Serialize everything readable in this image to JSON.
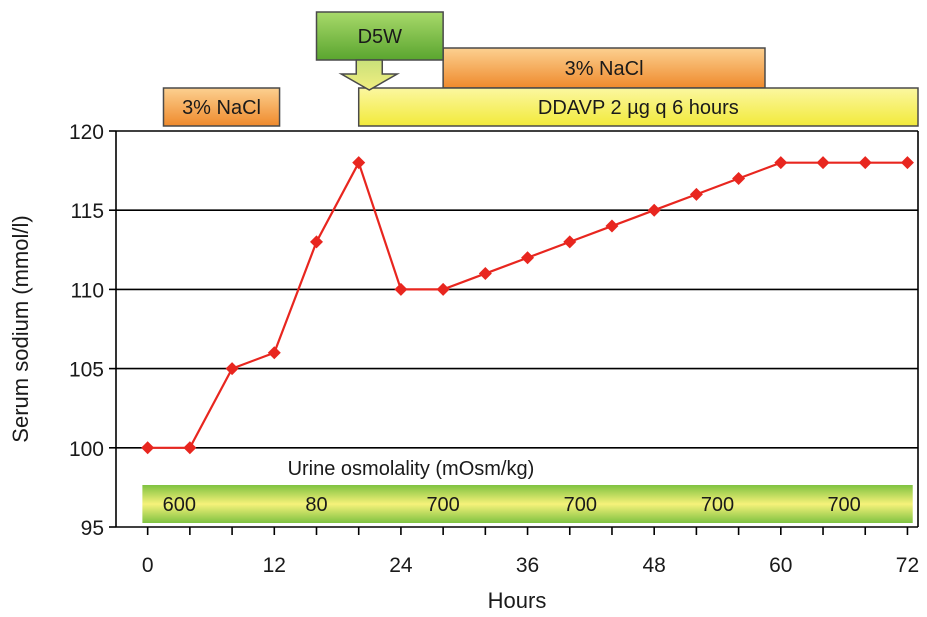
{
  "chart_data": {
    "type": "line",
    "xlabel": "Hours",
    "ylabel": "Serum sodium (mmol/l)",
    "xlim": [
      -3,
      73
    ],
    "ylim": [
      95,
      120
    ],
    "xticks": [
      0,
      12,
      24,
      36,
      48,
      60,
      72
    ],
    "yticks": [
      95,
      100,
      105,
      110,
      115,
      120
    ],
    "grid": "horizontal",
    "series": [
      {
        "color": "#e8261f",
        "marker": "diamond",
        "x": [
          0,
          4,
          8,
          12,
          16,
          20,
          24,
          28,
          32,
          36,
          40,
          44,
          48,
          52,
          56,
          60,
          64,
          68,
          72
        ],
        "y": [
          100,
          100,
          105,
          106,
          113,
          118,
          110,
          110,
          111,
          112,
          113,
          114,
          115,
          116,
          117,
          118,
          118,
          118,
          118
        ]
      }
    ],
    "treatments": [
      {
        "label": "3% NaCl",
        "start": 1.5,
        "end": 12.5,
        "color": "#f4a24a"
      },
      {
        "label": "D5W",
        "start": 16,
        "end": 28,
        "color": "#6cb33f",
        "arrow_at": 21
      },
      {
        "label": "3% NaCl",
        "start": 28,
        "end": 58.5,
        "color": "#f4a24a"
      },
      {
        "label": "DDAVP 2 µg q 6 hours",
        "start": 20,
        "end": 73,
        "color": "#f6f14a"
      }
    ],
    "urine_osmolality": {
      "title": "Urine osmolality (mOsm/kg)",
      "start": -0.5,
      "end": 72.5,
      "values": [
        {
          "label": "600",
          "x": 3
        },
        {
          "label": "80",
          "x": 16
        },
        {
          "label": "700",
          "x": 28
        },
        {
          "label": "700",
          "x": 41
        },
        {
          "label": "700",
          "x": 54
        },
        {
          "label": "700",
          "x": 66
        }
      ]
    }
  }
}
